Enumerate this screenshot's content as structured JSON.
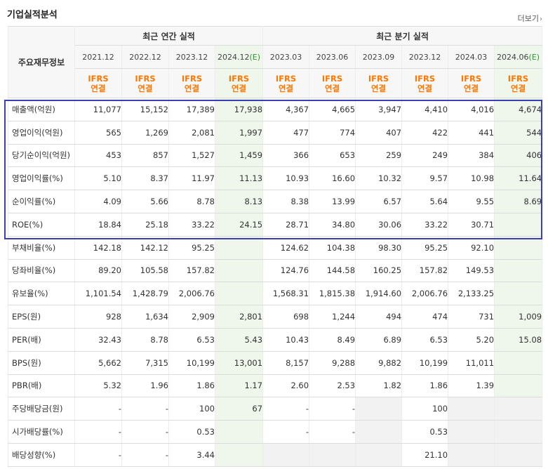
{
  "page_title": "기업실적분석",
  "more_link": "더보기",
  "chevron": "›",
  "table": {
    "label_header": "주요재무정보",
    "group_annual": "최근 연간 실적",
    "group_quarter": "최근 분기 실적",
    "periods": [
      {
        "label": "2021.12",
        "est": false
      },
      {
        "label": "2022.12",
        "est": false
      },
      {
        "label": "2023.12",
        "est": false
      },
      {
        "label": "2024.12",
        "est": true,
        "suffix": "(E)"
      },
      {
        "label": "2023.03",
        "est": false
      },
      {
        "label": "2023.06",
        "est": false
      },
      {
        "label": "2023.09",
        "est": false
      },
      {
        "label": "2023.12",
        "est": false
      },
      {
        "label": "2024.03",
        "est": false
      },
      {
        "label": "2024.06",
        "est": true,
        "suffix": "(E)"
      }
    ],
    "accounting_line1": "IFRS",
    "accounting_line2": "연결",
    "rows": [
      {
        "label": "매출액(억원)",
        "values": [
          "11,077",
          "15,152",
          "17,389",
          "17,938",
          "4,367",
          "4,665",
          "3,947",
          "4,410",
          "4,016",
          "4,674"
        ]
      },
      {
        "label": "영업이익(억원)",
        "values": [
          "565",
          "1,269",
          "2,081",
          "1,997",
          "477",
          "774",
          "407",
          "422",
          "441",
          "544"
        ]
      },
      {
        "label": "당기순이익(억원)",
        "values": [
          "453",
          "857",
          "1,527",
          "1,459",
          "366",
          "653",
          "259",
          "249",
          "384",
          "406"
        ]
      },
      {
        "label": "영업이익률(%)",
        "values": [
          "5.10",
          "8.37",
          "11.97",
          "11.13",
          "10.93",
          "16.60",
          "10.32",
          "9.57",
          "10.98",
          "11.64"
        ]
      },
      {
        "label": "순이익률(%)",
        "values": [
          "4.09",
          "5.66",
          "8.78",
          "8.13",
          "8.38",
          "13.99",
          "6.57",
          "5.64",
          "9.55",
          "8.69"
        ]
      },
      {
        "label": "ROE(%)",
        "values": [
          "18.84",
          "25.18",
          "33.22",
          "24.15",
          "28.71",
          "34.80",
          "30.06",
          "33.22",
          "30.71",
          ""
        ]
      },
      {
        "label": "부채비율(%)",
        "values": [
          "142.18",
          "142.12",
          "95.25",
          "",
          "124.62",
          "104.38",
          "98.30",
          "95.25",
          "92.10",
          ""
        ]
      },
      {
        "label": "당좌비율(%)",
        "values": [
          "89.20",
          "105.58",
          "157.82",
          "",
          "124.76",
          "144.58",
          "160.25",
          "157.82",
          "149.53",
          ""
        ]
      },
      {
        "label": "유보율(%)",
        "values": [
          "1,101.54",
          "1,428.79",
          "2,006.76",
          "",
          "1,568.31",
          "1,815.38",
          "1,914.60",
          "2,006.76",
          "2,133.25",
          ""
        ]
      },
      {
        "label": "EPS(원)",
        "values": [
          "928",
          "1,634",
          "2,909",
          "2,801",
          "698",
          "1,244",
          "494",
          "474",
          "731",
          "1,009"
        ]
      },
      {
        "label": "PER(배)",
        "values": [
          "32.43",
          "8.78",
          "6.53",
          "5.43",
          "10.43",
          "8.49",
          "6.89",
          "6.53",
          "5.20",
          "15.08"
        ]
      },
      {
        "label": "BPS(원)",
        "values": [
          "5,662",
          "7,315",
          "10,199",
          "13,001",
          "8,157",
          "9,288",
          "9,882",
          "10,199",
          "11,011",
          ""
        ]
      },
      {
        "label": "PBR(배)",
        "values": [
          "5.32",
          "1.96",
          "1.86",
          "1.17",
          "2.60",
          "2.53",
          "1.82",
          "1.86",
          "1.39",
          ""
        ]
      },
      {
        "label": "주당배당금(원)",
        "values": [
          "-",
          "-",
          "100",
          "67",
          "-",
          "-",
          "",
          "100",
          "",
          ""
        ]
      },
      {
        "label": "시가배당률(%)",
        "values": [
          "-",
          "-",
          "0.53",
          "",
          "-",
          "-",
          "",
          "0.53",
          "",
          ""
        ]
      },
      {
        "label": "배당성향(%)",
        "values": [
          "-",
          "-",
          "3.44",
          "",
          "",
          "",
          "",
          "21.10",
          "",
          ""
        ]
      }
    ],
    "group_starts": [
      0,
      3,
      6,
      9,
      13
    ],
    "blank_cells": {
      "13": [
        6,
        8,
        9
      ],
      "14": [
        6,
        8,
        9
      ],
      "15": [
        4,
        5,
        6,
        8,
        9
      ]
    }
  },
  "colors": {
    "accent_orange": "#ff7700",
    "estimate_bg": "#eff6ec",
    "estimate_text": "#2a9a2a",
    "highlight_border": "#3b3fb4",
    "header_bg": "#f7f7f7",
    "blank_bg": "#f2f2f2"
  }
}
